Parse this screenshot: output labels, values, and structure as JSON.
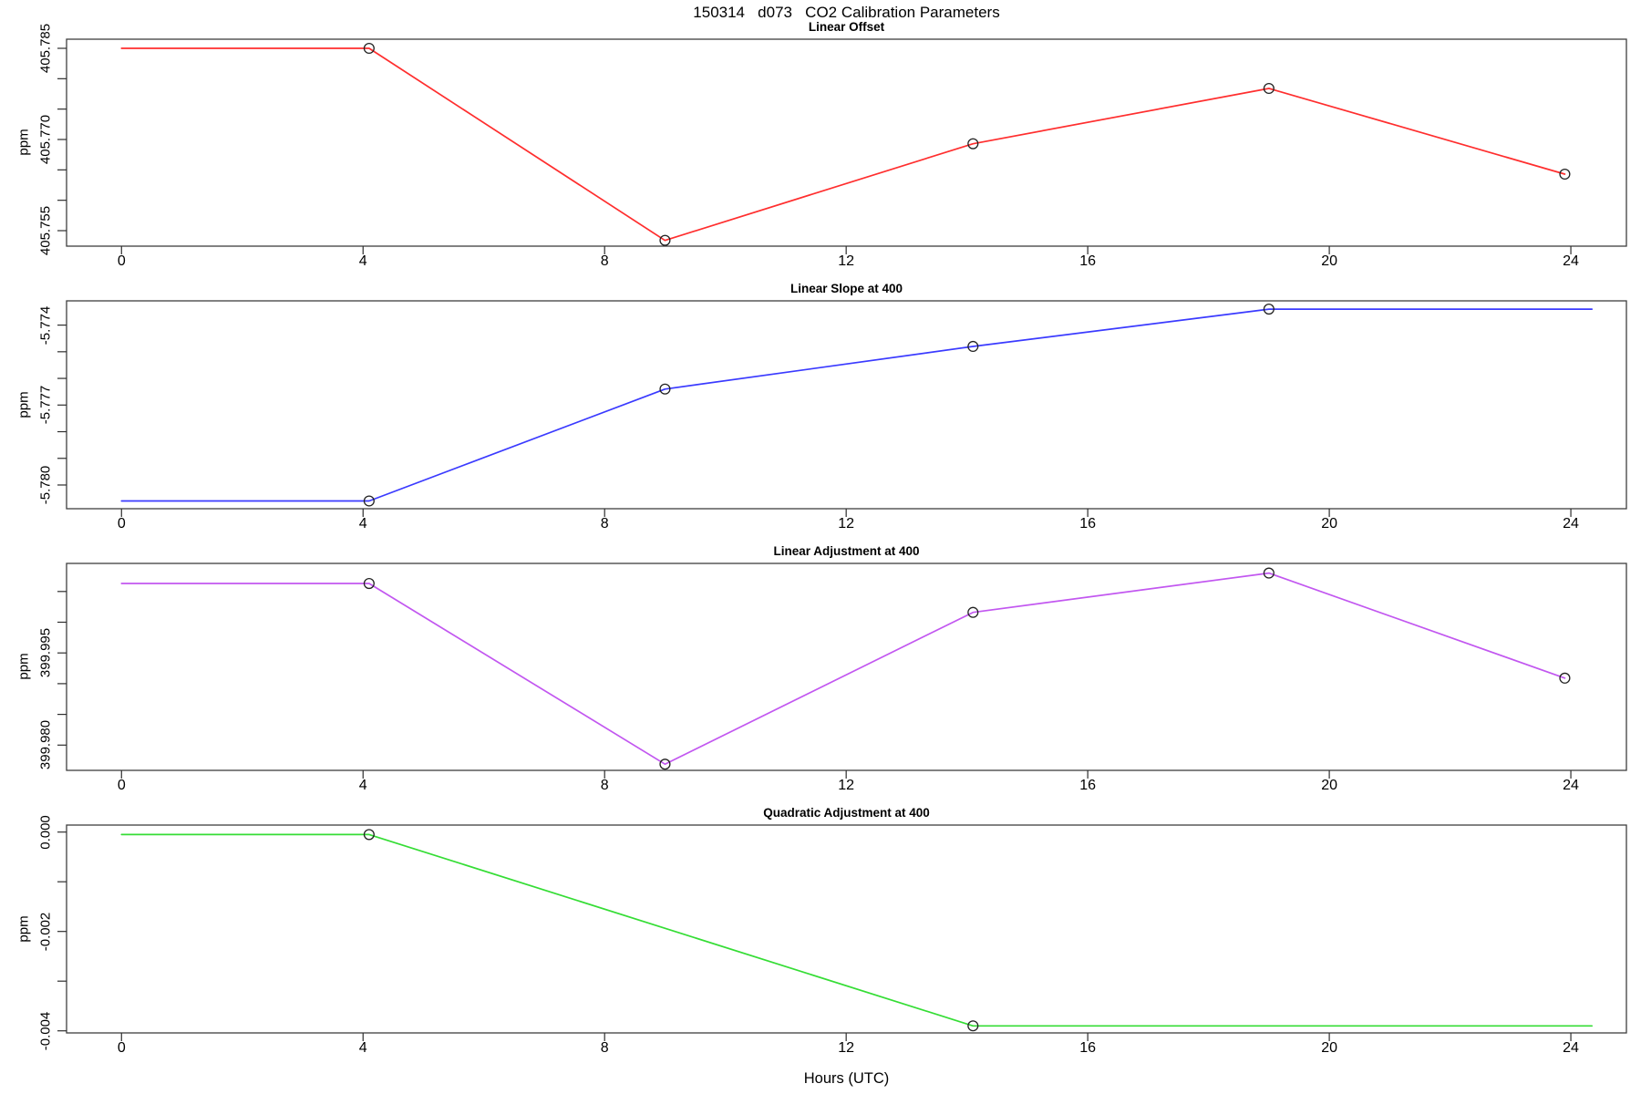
{
  "page_title": "150314   d073   CO2 Calibration Parameters",
  "xlabel": "Hours (UTC)",
  "frame_color": "#3f3f3f",
  "tick_color": "#2e2e2e",
  "marker_color": "#222222",
  "chart_data": [
    {
      "type": "line",
      "title": "Linear Offset",
      "ylabel": "ppm",
      "color": "#ff2e2e",
      "marker": "open-circle",
      "grid": false,
      "xlim": [
        -0.91,
        24.92
      ],
      "ylim": [
        405.75245,
        405.7865
      ],
      "xticks": [
        {
          "v": 0,
          "label": "0"
        },
        {
          "v": 4,
          "label": "4"
        },
        {
          "v": 8,
          "label": "8"
        },
        {
          "v": 12,
          "label": "12"
        },
        {
          "v": 16,
          "label": "16"
        },
        {
          "v": 20,
          "label": "20"
        },
        {
          "v": 24,
          "label": "24"
        }
      ],
      "yticks": [
        {
          "v": 405.755,
          "label": "405.755"
        },
        {
          "v": 405.76,
          "label": ""
        },
        {
          "v": 405.765,
          "label": ""
        },
        {
          "v": 405.77,
          "label": "405.770"
        },
        {
          "v": 405.775,
          "label": ""
        },
        {
          "v": 405.78,
          "label": ""
        },
        {
          "v": 405.785,
          "label": "405.785"
        }
      ],
      "line": [
        [
          0,
          405.785
        ],
        [
          4.1,
          405.785
        ],
        [
          9,
          405.7534
        ],
        [
          14.1,
          405.7693
        ],
        [
          19,
          405.7784
        ],
        [
          23.9,
          405.7643
        ]
      ],
      "markers": [
        [
          4.1,
          405.785
        ],
        [
          9,
          405.7534
        ],
        [
          14.1,
          405.7693
        ],
        [
          19,
          405.7784
        ],
        [
          23.9,
          405.7643
        ]
      ]
    },
    {
      "type": "line",
      "title": "Linear Slope at 400",
      "ylabel": "ppm",
      "color": "#3a3aff",
      "marker": "open-circle",
      "grid": false,
      "xlim": [
        -0.91,
        24.92
      ],
      "ylim": [
        -5.78089,
        -5.77309
      ],
      "xticks": [
        {
          "v": 0,
          "label": "0"
        },
        {
          "v": 4,
          "label": "4"
        },
        {
          "v": 8,
          "label": "8"
        },
        {
          "v": 12,
          "label": "12"
        },
        {
          "v": 16,
          "label": "16"
        },
        {
          "v": 20,
          "label": "20"
        },
        {
          "v": 24,
          "label": "24"
        }
      ],
      "yticks": [
        {
          "v": -5.78,
          "label": "-5.780"
        },
        {
          "v": -5.779,
          "label": ""
        },
        {
          "v": -5.778,
          "label": ""
        },
        {
          "v": -5.777,
          "label": "-5.777"
        },
        {
          "v": -5.776,
          "label": ""
        },
        {
          "v": -5.775,
          "label": ""
        },
        {
          "v": -5.774,
          "label": "-5.774"
        }
      ],
      "line": [
        [
          0,
          -5.7806
        ],
        [
          4.1,
          -5.7806
        ],
        [
          9,
          -5.7764
        ],
        [
          14.1,
          -5.7748
        ],
        [
          19,
          -5.7734
        ],
        [
          24.35,
          -5.7734
        ]
      ],
      "markers": [
        [
          4.1,
          -5.7806
        ],
        [
          9,
          -5.7764
        ],
        [
          14.1,
          -5.7748
        ],
        [
          19,
          -5.7734
        ]
      ]
    },
    {
      "type": "line",
      "title": "Linear Adjustment at 400",
      "ylabel": "ppm",
      "color": "#c257f0",
      "marker": "open-circle",
      "grid": false,
      "xlim": [
        -0.91,
        24.92
      ],
      "ylim": [
        399.97589,
        400.00957
      ],
      "xticks": [
        {
          "v": 0,
          "label": "0"
        },
        {
          "v": 4,
          "label": "4"
        },
        {
          "v": 8,
          "label": "8"
        },
        {
          "v": 12,
          "label": "12"
        },
        {
          "v": 16,
          "label": "16"
        },
        {
          "v": 20,
          "label": "20"
        },
        {
          "v": 24,
          "label": "24"
        }
      ],
      "yticks": [
        {
          "v": 399.98,
          "label": "399.980"
        },
        {
          "v": 399.985,
          "label": ""
        },
        {
          "v": 399.99,
          "label": ""
        },
        {
          "v": 399.995,
          "label": "399.995"
        },
        {
          "v": 400.0,
          "label": ""
        },
        {
          "v": 400.005,
          "label": ""
        }
      ],
      "line": [
        [
          0,
          400.0063
        ],
        [
          4.1,
          400.0063
        ],
        [
          9,
          399.9769
        ],
        [
          14.1,
          400.0016
        ],
        [
          19,
          400.008
        ],
        [
          23.9,
          399.9909
        ]
      ],
      "markers": [
        [
          4.1,
          400.0063
        ],
        [
          9,
          399.9769
        ],
        [
          14.1,
          400.0016
        ],
        [
          19,
          400.008
        ],
        [
          23.9,
          399.9909
        ]
      ]
    },
    {
      "type": "line",
      "title": "Quadratic Adjustment at 400",
      "ylabel": "ppm",
      "color": "#35dd35",
      "marker": "open-circle",
      "grid": false,
      "xlim": [
        -0.91,
        24.92
      ],
      "ylim": [
        -0.004042,
        0.000141
      ],
      "xticks": [
        {
          "v": 0,
          "label": "0"
        },
        {
          "v": 4,
          "label": "4"
        },
        {
          "v": 8,
          "label": "8"
        },
        {
          "v": 12,
          "label": "12"
        },
        {
          "v": 16,
          "label": "16"
        },
        {
          "v": 20,
          "label": "20"
        },
        {
          "v": 24,
          "label": "24"
        }
      ],
      "yticks": [
        {
          "v": -0.004,
          "label": "-0.004"
        },
        {
          "v": -0.003,
          "label": ""
        },
        {
          "v": -0.002,
          "label": "-0.002"
        },
        {
          "v": -0.001,
          "label": ""
        },
        {
          "v": 0.0,
          "label": "0.000"
        }
      ],
      "line": [
        [
          0,
          -5e-05
        ],
        [
          4.1,
          -5e-05
        ],
        [
          14.1,
          -0.0039
        ],
        [
          24.35,
          -0.0039
        ]
      ],
      "markers": [
        [
          4.1,
          -5e-05
        ],
        [
          14.1,
          -0.0039
        ]
      ]
    }
  ]
}
